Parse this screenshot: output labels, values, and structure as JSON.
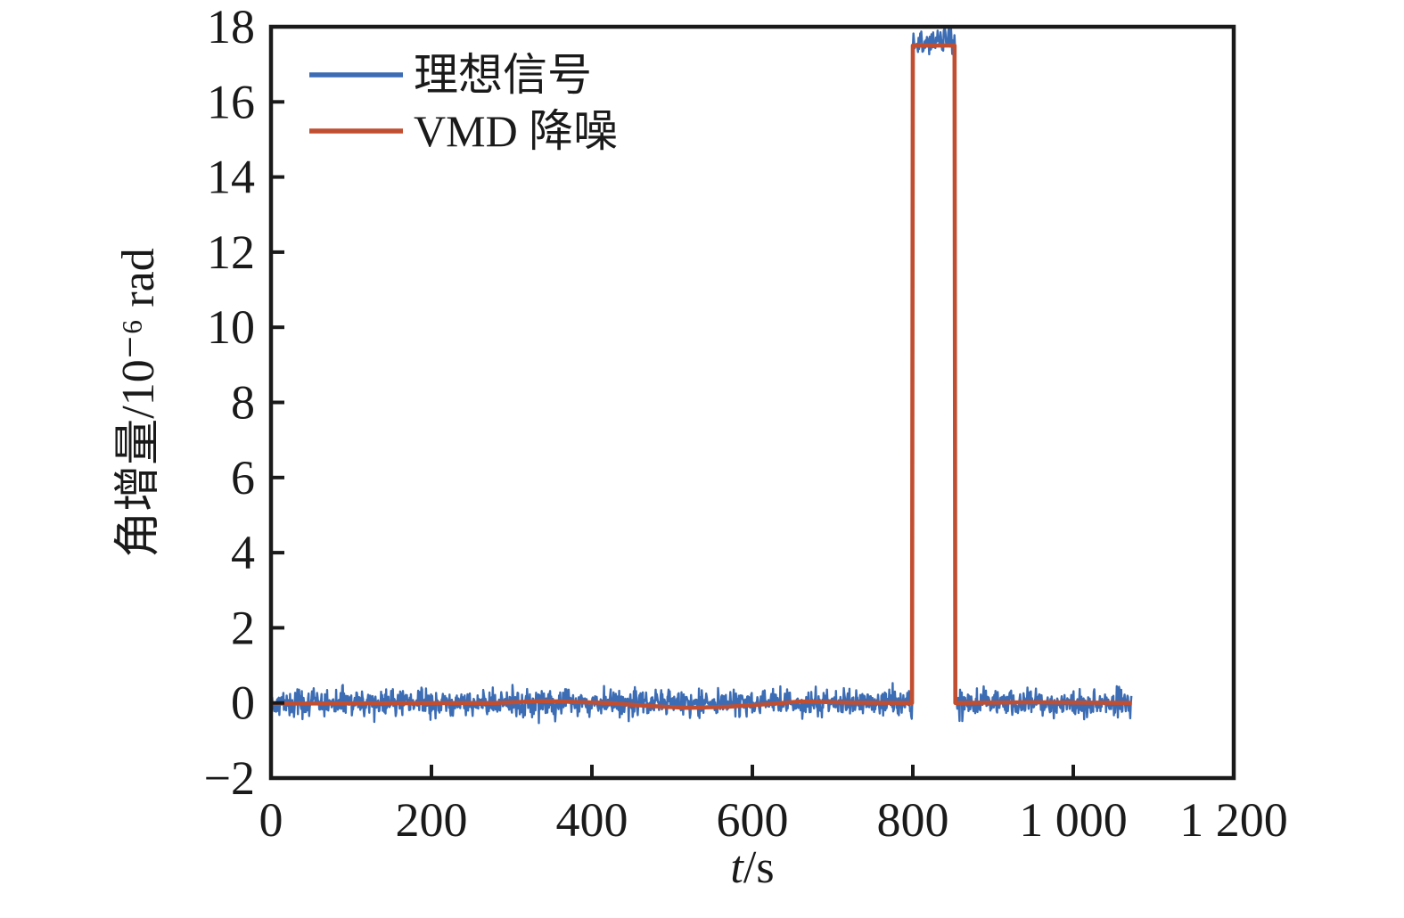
{
  "figure": {
    "background": "#ffffff",
    "axis_color": "#1a1a1a"
  },
  "chart_data": {
    "type": "line",
    "title": "",
    "xlabel": "t/s",
    "ylabel": "角增量/10⁻⁶ rad",
    "xlim": [
      0,
      1200
    ],
    "ylim": [
      -2,
      18
    ],
    "x_ticks": [
      0,
      200,
      400,
      600,
      800,
      1000,
      1200
    ],
    "x_tick_labels": [
      "0",
      "200",
      "400",
      "600",
      "800",
      "1 000",
      "1 200"
    ],
    "y_ticks": [
      -2,
      0,
      2,
      4,
      6,
      8,
      10,
      12,
      14,
      16,
      18
    ],
    "y_tick_labels": [
      "−2",
      "0",
      "2",
      "4",
      "6",
      "8",
      "10",
      "12",
      "14",
      "16",
      "18"
    ],
    "grid": false,
    "legend_position": "upper-left-inside",
    "series": [
      {
        "name": "理想信号",
        "color": "#3b6cb4",
        "kind": "noisy-square-signal",
        "t_start": 0,
        "t_end": 1073,
        "sample_step": 0.7,
        "noise_peak_amplitude": 0.62,
        "noise_seed": 42,
        "segments": [
          {
            "t0": 0,
            "t1": 800,
            "level": 0
          },
          {
            "t0": 800,
            "t1": 853,
            "level": 17.58
          },
          {
            "t0": 853,
            "t1": 1073,
            "level": 0
          }
        ]
      },
      {
        "name": "VMD 降噪",
        "color": "#c14e30",
        "kind": "breakpoint-line",
        "points": [
          [
            0,
            -0.02
          ],
          [
            280,
            0.0
          ],
          [
            340,
            0.05
          ],
          [
            420,
            0.0
          ],
          [
            470,
            -0.08
          ],
          [
            520,
            -0.13
          ],
          [
            570,
            -0.1
          ],
          [
            620,
            -0.03
          ],
          [
            660,
            0.04
          ],
          [
            720,
            0.01
          ],
          [
            799,
            0.0
          ],
          [
            800,
            17.5
          ],
          [
            852,
            17.5
          ],
          [
            853,
            0.0
          ],
          [
            950,
            0.02
          ],
          [
            1073,
            0.0
          ]
        ]
      }
    ]
  }
}
